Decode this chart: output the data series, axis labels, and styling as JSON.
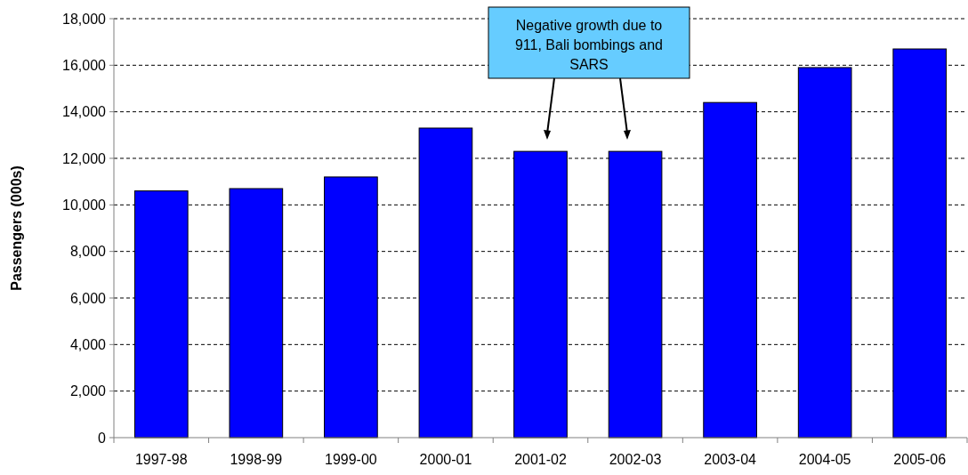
{
  "chart_data": {
    "type": "bar",
    "ylabel": "Passengers (000s)",
    "categories": [
      "1997-98",
      "1998-99",
      "1999-00",
      "2000-01",
      "2001-02",
      "2002-03",
      "2003-04",
      "2004-05",
      "2005-06"
    ],
    "values": [
      10600,
      10700,
      11200,
      13300,
      12300,
      12300,
      14400,
      15900,
      16700
    ],
    "color": "#0000ff",
    "ylim": [
      0,
      18000
    ],
    "yticks": [
      {
        "value": 0,
        "label": "0"
      },
      {
        "value": 2000,
        "label": "2,000"
      },
      {
        "value": 4000,
        "label": "4,000"
      },
      {
        "value": 6000,
        "label": "6,000"
      },
      {
        "value": 8000,
        "label": "8,000"
      },
      {
        "value": 10000,
        "label": "10,000"
      },
      {
        "value": 12000,
        "label": "12,000"
      },
      {
        "value": 14000,
        "label": "14,000"
      },
      {
        "value": 16000,
        "label": "16,000"
      },
      {
        "value": 18000,
        "label": "18,000"
      }
    ],
    "grid": "y",
    "annotations": [
      "Negative growth due to 911, Bali bombings and SARS"
    ]
  }
}
